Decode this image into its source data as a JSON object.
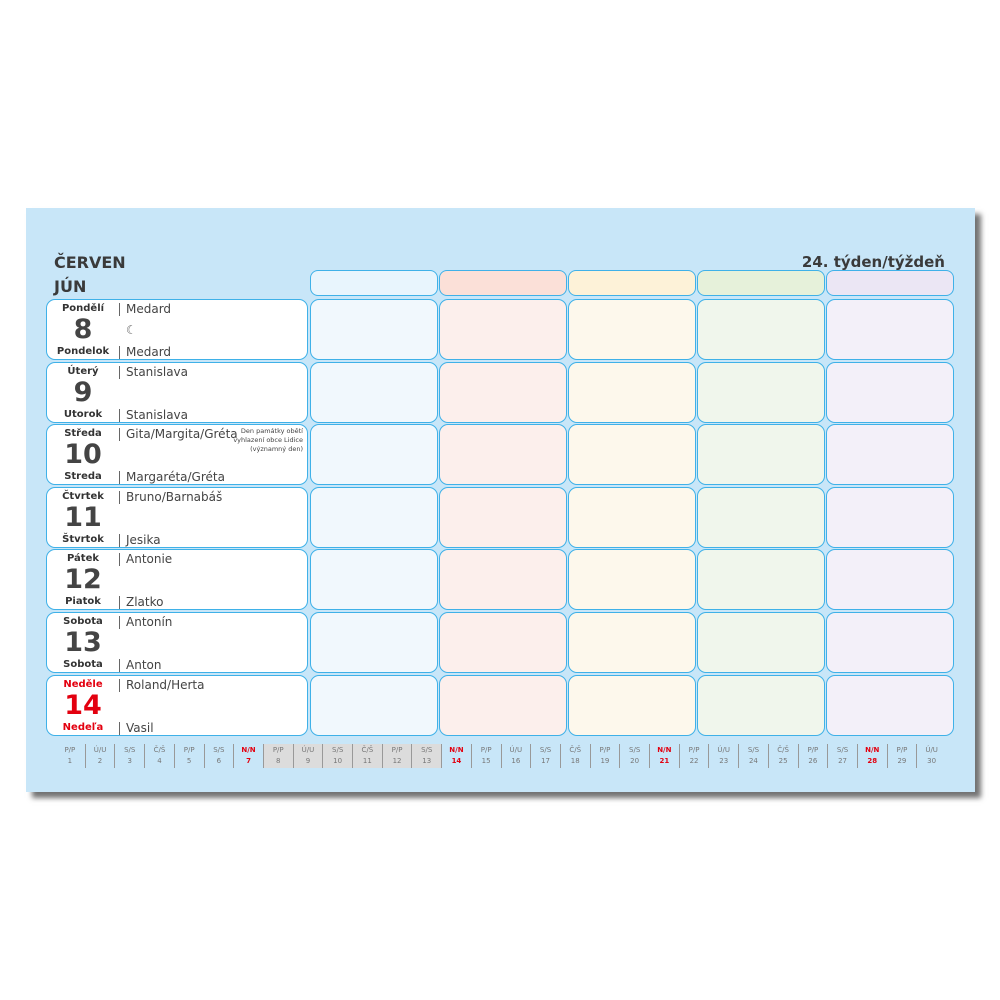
{
  "month_cz": "ČERVEN",
  "month_sk": "JÚN",
  "week": "24. týden/týždeň",
  "colors": {
    "background": "#c8e6f8",
    "border": "#3fb1e8",
    "sunday": "#e3000f",
    "column_headers": [
      "#e8f5fd",
      "#fbe0d8",
      "#fdf2d8",
      "#e6f1da",
      "#ebe6f4"
    ],
    "column_cells": [
      "#f1f8fd",
      "#fcefec",
      "#fdf8ec",
      "#f0f6ec",
      "#f3f0f9"
    ]
  },
  "days": [
    {
      "cz": "Pondělí",
      "sk": "Pondelok",
      "num": "8",
      "name_cz": "Medard",
      "name_sk": "Medard",
      "moon": "☾"
    },
    {
      "cz": "Úterý",
      "sk": "Utorok",
      "num": "9",
      "name_cz": "Stanislava",
      "name_sk": "Stanislava"
    },
    {
      "cz": "Středa",
      "sk": "Streda",
      "num": "10",
      "name_cz": "Gita/Margita/Gréta",
      "name_sk": "Margaréta/Gréta",
      "note": "Den památky obětí vyhlazení obce Lidice (významný den)"
    },
    {
      "cz": "Čtvrtek",
      "sk": "Štvrtok",
      "num": "11",
      "name_cz": "Bruno/Barnabáš",
      "name_sk": "Jesika"
    },
    {
      "cz": "Pátek",
      "sk": "Piatok",
      "num": "12",
      "name_cz": "Antonie",
      "name_sk": "Zlatko"
    },
    {
      "cz": "Sobota",
      "sk": "Sobota",
      "num": "13",
      "name_cz": "Antonín",
      "name_sk": "Anton"
    },
    {
      "cz": "Neděle",
      "sk": "Nedeľa",
      "num": "14",
      "name_cz": "Roland/Herta",
      "name_sk": "Vasil",
      "holiday": true
    }
  ],
  "month_strip": {
    "abbr": [
      "P/P",
      "Ú/U",
      "S/S",
      "Č/Š",
      "P/P",
      "S/S",
      "N/N"
    ],
    "first_weekday": 0,
    "days": 30,
    "current_week": [
      8,
      14
    ]
  }
}
